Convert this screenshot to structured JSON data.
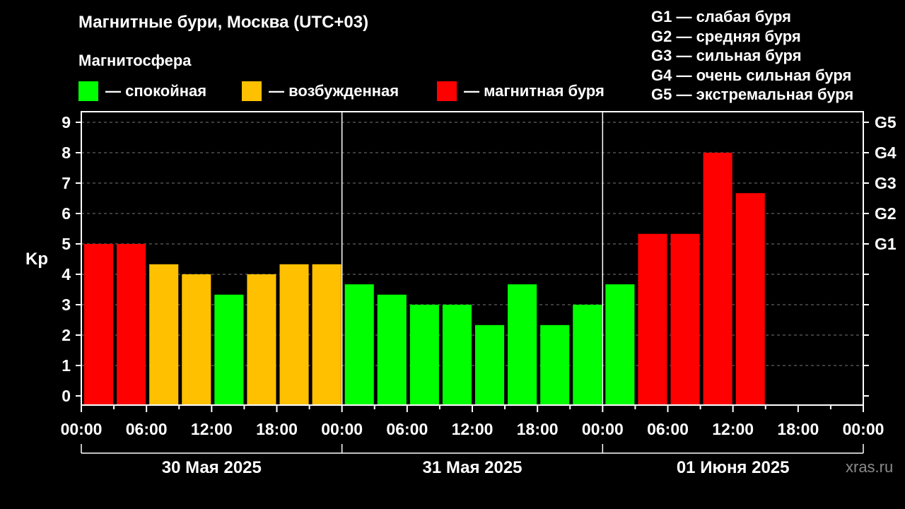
{
  "title": "Магнитные бури, Москва (UTC+03)",
  "subtitle": "Магнитосфера",
  "legend": [
    {
      "label": "— спокойная",
      "color": "#00ff00"
    },
    {
      "label": "— возбужденная",
      "color": "#ffc000"
    },
    {
      "label": "— магнитная буря",
      "color": "#ff0000"
    }
  ],
  "g_legend": [
    "G1 — слабая буря",
    "G2 — средняя буря",
    "G3 — сильная буря",
    "G4 — очень сильная буря",
    "G5 — экстремальная буря"
  ],
  "watermark": "xras.ru",
  "chart_data": {
    "type": "bar",
    "ylabel": "Kp",
    "ylim": [
      0,
      9
    ],
    "y_ticks": [
      "0",
      "1",
      "2",
      "3",
      "4",
      "5",
      "6",
      "7",
      "8",
      "9"
    ],
    "right_ticks": [
      {
        "value": 5,
        "label": "G1"
      },
      {
        "value": 6,
        "label": "G2"
      },
      {
        "value": 7,
        "label": "G3"
      },
      {
        "value": 8,
        "label": "G4"
      },
      {
        "value": 9,
        "label": "G5"
      }
    ],
    "x_tick_labels": [
      "00:00",
      "06:00",
      "12:00",
      "18:00",
      "00:00",
      "06:00",
      "12:00",
      "18:00",
      "00:00",
      "06:00",
      "12:00",
      "18:00",
      "00:00"
    ],
    "days": [
      "30 Мая 2025",
      "31 Мая 2025",
      "01 Июня 2025"
    ],
    "grid": "dashed horizontal",
    "values": [
      5,
      5,
      4.33,
      4,
      3.33,
      4,
      4.33,
      4.33,
      3.67,
      3.33,
      3,
      3,
      2.33,
      3.67,
      2.33,
      3,
      3.67,
      5.33,
      5.33,
      8,
      6.67
    ],
    "colors": {
      "quiet": "#00ff00",
      "active": "#ffc000",
      "storm": "#ff0000"
    }
  }
}
